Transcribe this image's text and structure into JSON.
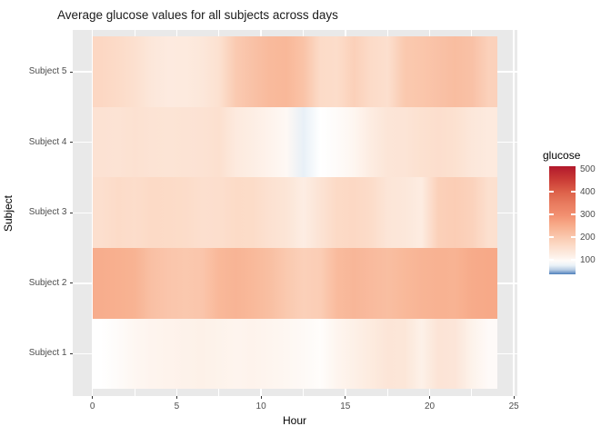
{
  "title": "Average glucose values for all subjects across days",
  "colors": {
    "background": "#ffffff",
    "panel_bg": "#e9e9e9",
    "gridline": "#ffffff",
    "axis_text": "#4d4d4d",
    "tick_mark": "#333333",
    "title_text": "#1a1a1a"
  },
  "chart_data": {
    "type": "heatmap",
    "title": "Average glucose values for all subjects across days",
    "xlabel": "Hour",
    "ylabel": "Subject",
    "x": [
      0,
      1,
      2,
      3,
      4,
      5,
      6,
      7,
      8,
      9,
      10,
      11,
      12,
      13,
      14,
      15,
      16,
      17,
      18,
      19,
      20,
      21,
      22,
      23
    ],
    "x_ticks": [
      0,
      5,
      10,
      15,
      20,
      25
    ],
    "x_minor_ticks": [
      2.5,
      7.5,
      12.5,
      17.5,
      22.5
    ],
    "x_range": [
      -1.2,
      25.2
    ],
    "rows_top_to_bottom": [
      "Subject 5",
      "Subject 4",
      "Subject 3",
      "Subject 2",
      "Subject 1"
    ],
    "series": [
      {
        "name": "Subject 5",
        "values": [
          170,
          162,
          152,
          136,
          128,
          130,
          136,
          150,
          196,
          212,
          226,
          230,
          210,
          162,
          158,
          184,
          162,
          153,
          198,
          204,
          212,
          220,
          212,
          182
        ]
      },
      {
        "name": "Subject 4",
        "values": [
          146,
          145,
          148,
          145,
          143,
          145,
          146,
          151,
          130,
          120,
          110,
          100,
          74,
          88,
          95,
          105,
          125,
          140,
          142,
          150,
          155,
          150,
          135,
          130
        ]
      },
      {
        "name": "Subject 3",
        "values": [
          153,
          162,
          157,
          165,
          163,
          160,
          153,
          155,
          163,
          161,
          149,
          141,
          122,
          145,
          165,
          168,
          160,
          140,
          135,
          125,
          185,
          190,
          180,
          152
        ]
      },
      {
        "name": "Subject 2",
        "values": [
          248,
          244,
          238,
          215,
          205,
          200,
          205,
          230,
          236,
          228,
          217,
          198,
          185,
          190,
          224,
          232,
          225,
          218,
          228,
          236,
          240,
          238,
          252,
          255
        ]
      },
      {
        "name": "Subject 1",
        "values": [
          88,
          95,
          103,
          108,
          110,
          112,
          115,
          111,
          108,
          110,
          106,
          103,
          98,
          92,
          106,
          116,
          127,
          140,
          138,
          115,
          142,
          139,
          111,
          96
        ]
      }
    ],
    "legend": {
      "title": "glucose",
      "ticks": [
        500,
        400,
        300,
        200,
        100
      ],
      "bar_domain": [
        36,
        512
      ]
    },
    "color_scale": {
      "type": "diverging-blue-white-red",
      "stops": [
        [
          36,
          "#4e7fbb"
        ],
        [
          48,
          "#9cb8d8"
        ],
        [
          62,
          "#cfdeed"
        ],
        [
          75,
          "#eaf1f8"
        ],
        [
          88,
          "#ffffff"
        ],
        [
          100,
          "#fef8f4"
        ],
        [
          120,
          "#fdeee4"
        ],
        [
          140,
          "#fce5d7"
        ],
        [
          160,
          "#fcdcc9"
        ],
        [
          180,
          "#fbd2bc"
        ],
        [
          200,
          "#fac8ae"
        ],
        [
          220,
          "#f9bda0"
        ],
        [
          240,
          "#f8b292"
        ],
        [
          260,
          "#f6a685"
        ],
        [
          280,
          "#f49a7a"
        ],
        [
          300,
          "#f18d6f"
        ],
        [
          350,
          "#e87b5e"
        ],
        [
          400,
          "#dc6049"
        ],
        [
          450,
          "#cb3d36"
        ],
        [
          512,
          "#b2182b"
        ]
      ]
    }
  }
}
